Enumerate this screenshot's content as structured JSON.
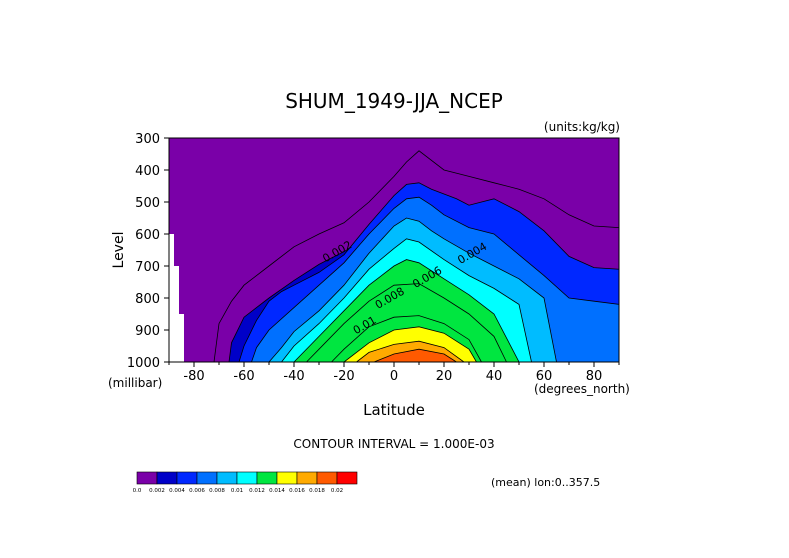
{
  "chart_data": {
    "type": "contour",
    "title": "SHUM_1949-JJA_NCEP",
    "units_label": "(units:kg/kg)",
    "ylabel": "Level",
    "y_unit_label": "(millibar)",
    "xlabel": "Latitude",
    "x_unit_label": "(degrees_north)",
    "xlim": [
      -90,
      90
    ],
    "ylim": [
      1000,
      300
    ],
    "x_ticks": [
      -80,
      -60,
      -40,
      -20,
      0,
      20,
      40,
      60,
      80
    ],
    "y_ticks": [
      300,
      400,
      500,
      600,
      700,
      800,
      900,
      1000
    ],
    "contour_interval_text": "CONTOUR INTERVAL = 1.000E-03",
    "contour_labels": [
      {
        "text": "0.002",
        "lat": -22,
        "lev": 665
      },
      {
        "text": "0.004",
        "lat": 32,
        "lev": 670
      },
      {
        "text": "0.006",
        "lat": 14,
        "lev": 745
      },
      {
        "text": "0.008",
        "lat": -1,
        "lev": 810
      },
      {
        "text": "0.01",
        "lat": -11,
        "lev": 895
      }
    ],
    "colorbar": {
      "colors": [
        "#7a00a8",
        "#0000c8",
        "#0028ff",
        "#0070ff",
        "#00bcff",
        "#00ffff",
        "#00e640",
        "#ffff00",
        "#ffaa00",
        "#ff5a00",
        "#ff0000"
      ],
      "labels": [
        "0.0",
        "0.002",
        "0.004",
        "0.006",
        "0.008",
        "0.01",
        "0.012",
        "0.014",
        "0.016",
        "0.018",
        "0.02"
      ]
    },
    "levels": [
      {
        "threshold": 0.002,
        "color": "#0000c8",
        "fill": true,
        "lat": [
          -66,
          -65,
          -60,
          -50,
          -40,
          -30,
          -20,
          -10,
          0,
          5,
          10,
          20,
          30,
          40,
          50,
          60,
          65,
          70
        ],
        "lev": [
          1000,
          940,
          860,
          800,
          745,
          695,
          655,
          610,
          555,
          535,
          540,
          565,
          585,
          600,
          620,
          700,
          850,
          1000
        ]
      },
      {
        "threshold": 0.003,
        "color": "#0028ff",
        "fill": true,
        "lat": [
          -62,
          -60,
          -55,
          -50,
          -45,
          -40,
          -30,
          -20,
          -10,
          0,
          5,
          10,
          15,
          20,
          25,
          30,
          35,
          40,
          50,
          60,
          70,
          80,
          90,
          90
        ],
        "lev": [
          1000,
          950,
          870,
          810,
          780,
          760,
          720,
          665,
          570,
          480,
          445,
          440,
          460,
          475,
          490,
          510,
          500,
          490,
          530,
          590,
          670,
          705,
          710,
          1000
        ]
      },
      {
        "threshold": 0.004,
        "color": "#0070ff",
        "fill": true,
        "lat": [
          -57,
          -55,
          -50,
          -40,
          -30,
          -20,
          -10,
          0,
          5,
          10,
          15,
          20,
          30,
          40,
          50,
          60,
          70,
          80,
          90,
          90
        ],
        "lev": [
          1000,
          955,
          900,
          830,
          760,
          690,
          600,
          520,
          490,
          485,
          510,
          540,
          580,
          600,
          665,
          730,
          800,
          810,
          820,
          1000
        ]
      },
      {
        "threshold": 0.005,
        "color": "#00bcff",
        "fill": true,
        "lat": [
          -50,
          -45,
          -40,
          -30,
          -20,
          -10,
          0,
          5,
          10,
          15,
          20,
          30,
          40,
          50,
          60,
          65
        ],
        "lev": [
          1000,
          955,
          905,
          840,
          760,
          660,
          575,
          550,
          560,
          590,
          615,
          660,
          700,
          740,
          800,
          1000
        ]
      },
      {
        "threshold": 0.006,
        "color": "#00ffff",
        "fill": true,
        "lat": [
          -45,
          -40,
          -30,
          -20,
          -10,
          0,
          5,
          10,
          20,
          30,
          40,
          50,
          55
        ],
        "lev": [
          1000,
          950,
          880,
          800,
          710,
          645,
          615,
          625,
          680,
          730,
          770,
          820,
          1000
        ]
      },
      {
        "threshold": 0.007,
        "color": "#00e640",
        "fill": true,
        "lat": [
          -40,
          -30,
          -20,
          -10,
          0,
          5,
          10,
          20,
          30,
          40,
          50
        ],
        "lev": [
          1000,
          920,
          840,
          760,
          700,
          680,
          690,
          740,
          790,
          850,
          1000
        ]
      },
      {
        "threshold": 0.008,
        "color": "#00e640",
        "fill": false,
        "lat": [
          -35,
          -30,
          -20,
          -10,
          0,
          10,
          20,
          30,
          40,
          45
        ],
        "lev": [
          1000,
          960,
          880,
          810,
          760,
          755,
          800,
          850,
          920,
          1000
        ]
      },
      {
        "threshold": 0.01,
        "color": "#00e640",
        "fill": false,
        "lat": [
          -25,
          -20,
          -10,
          0,
          10,
          20,
          30,
          35
        ],
        "lev": [
          1000,
          960,
          890,
          860,
          855,
          880,
          930,
          1000
        ]
      },
      {
        "threshold": 0.012,
        "color": "#ffff00",
        "fill": true,
        "lat": [
          -20,
          -10,
          0,
          10,
          20,
          30,
          33
        ],
        "lev": [
          1000,
          940,
          900,
          890,
          910,
          960,
          1000
        ]
      },
      {
        "threshold": 0.014,
        "color": "#ffaa00",
        "fill": true,
        "lat": [
          -15,
          -10,
          0,
          10,
          20,
          28
        ],
        "lev": [
          1000,
          970,
          945,
          935,
          955,
          1000
        ]
      },
      {
        "threshold": 0.016,
        "color": "#ff5a00",
        "fill": true,
        "lat": [
          -8,
          0,
          10,
          20,
          25
        ],
        "lev": [
          1000,
          975,
          960,
          975,
          1000
        ]
      },
      {
        "threshold": 0.0015,
        "color": "#7a00a8",
        "fill": false,
        "lat": [
          -72,
          -70,
          -65,
          -60,
          -50,
          -40,
          -30,
          -20,
          -10,
          0,
          5,
          10,
          20,
          30,
          40,
          50,
          60,
          70,
          80,
          90
        ],
        "lev": [
          1000,
          880,
          810,
          760,
          700,
          640,
          600,
          565,
          500,
          420,
          375,
          340,
          400,
          420,
          440,
          460,
          490,
          540,
          575,
          580
        ]
      }
    ],
    "missing_blocks": [
      {
        "lat": [
          -90,
          -88
        ],
        "lev": [
          600,
          700
        ]
      },
      {
        "lat": [
          -90,
          -86
        ],
        "lev": [
          700,
          850
        ]
      },
      {
        "lat": [
          -90,
          -84
        ],
        "lev": [
          850,
          1000
        ]
      }
    ],
    "mean_label": "(mean) lon:0..357.5"
  }
}
